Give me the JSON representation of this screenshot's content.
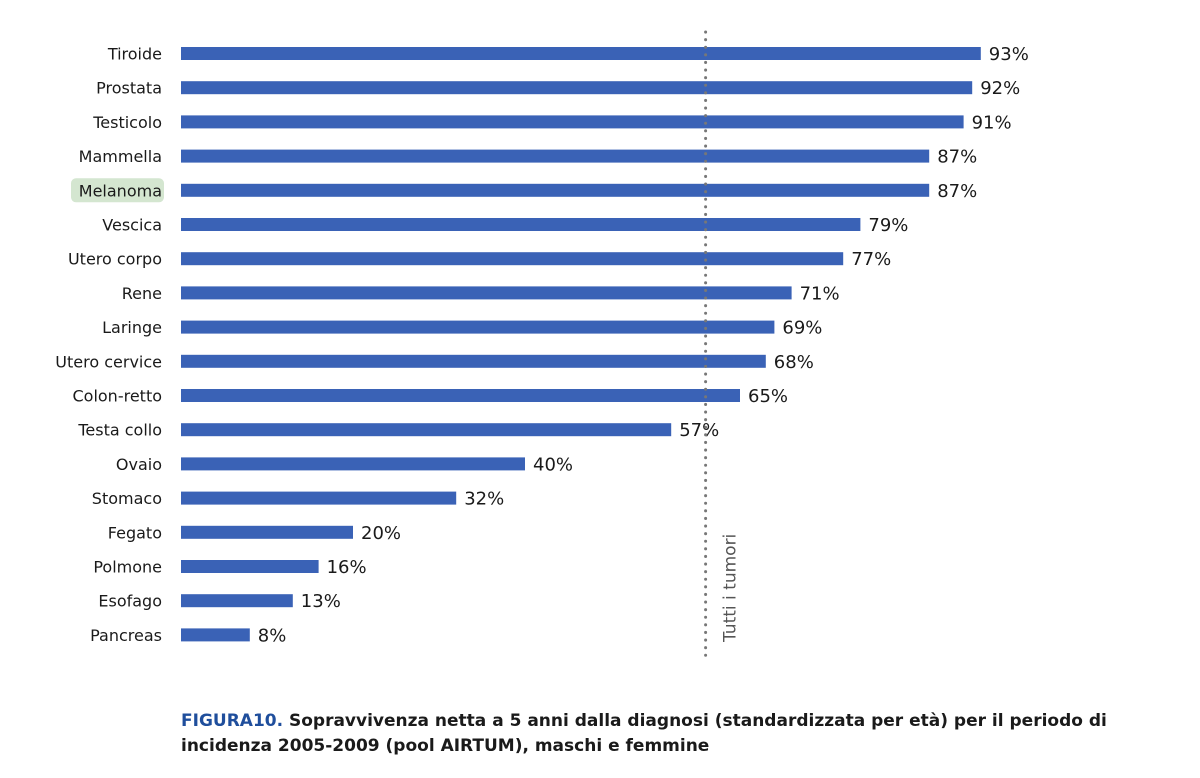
{
  "chart_data": {
    "type": "bar",
    "orientation": "horizontal",
    "categories": [
      "Tiroide",
      "Prostata",
      "Testicolo",
      "Mammella",
      "Melanoma",
      "Vescica",
      "Utero corpo",
      "Rene",
      "Laringe",
      "Utero cervice",
      "Colon-retto",
      "Testa collo",
      "Ovaio",
      "Stomaco",
      "Fegato",
      "Polmone",
      "Esofago",
      "Pancreas"
    ],
    "values": [
      93,
      92,
      91,
      87,
      87,
      79,
      77,
      71,
      69,
      68,
      65,
      57,
      40,
      32,
      20,
      16,
      13,
      8
    ],
    "value_labels": [
      "93%",
      "92%",
      "91%",
      "87%",
      "87%",
      "79%",
      "77%",
      "71%",
      "69%",
      "68%",
      "65%",
      "57%",
      "40%",
      "32%",
      "20%",
      "16%",
      "13%",
      "8%"
    ],
    "highlighted_category": "Melanoma",
    "reference_line": {
      "value": 61,
      "label": "Tutti i tumori",
      "style": "dotted"
    },
    "xlim": [
      0,
      100
    ],
    "grid": false,
    "colors": {
      "bar": "#3a62b6",
      "highlight_bg": "#d4e6d0",
      "reference": "#777777",
      "caption_prefix": "#1f4e9c"
    }
  },
  "caption": {
    "prefix": "FIGURA10.",
    "text": " Sopravvivenza netta a 5 anni dalla diagnosi (standardizzata per età) per il periodo di incidenza 2005-2009 (pool AIRTUM), maschi e femmine"
  }
}
